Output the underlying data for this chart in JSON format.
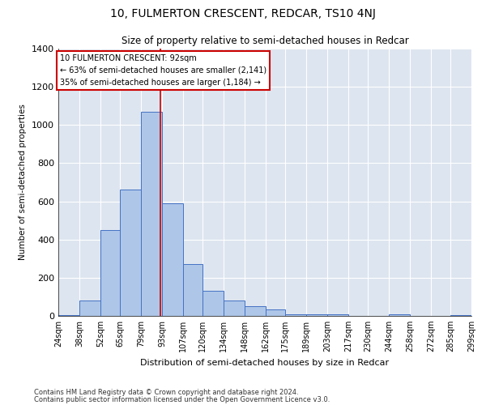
{
  "title": "10, FULMERTON CRESCENT, REDCAR, TS10 4NJ",
  "subtitle": "Size of property relative to semi-detached houses in Redcar",
  "xlabel": "Distribution of semi-detached houses by size in Redcar",
  "ylabel": "Number of semi-detached properties",
  "footnote1": "Contains HM Land Registry data © Crown copyright and database right 2024.",
  "footnote2": "Contains public sector information licensed under the Open Government Licence v3.0.",
  "annotation_line1": "10 FULMERTON CRESCENT: 92sqm",
  "annotation_line2": "← 63% of semi-detached houses are smaller (2,141)",
  "annotation_line3": "35% of semi-detached houses are larger (1,184) →",
  "property_size": 92,
  "bar_edges": [
    24,
    38,
    52,
    65,
    79,
    93,
    107,
    120,
    134,
    148,
    162,
    175,
    189,
    203,
    217,
    230,
    244,
    258,
    272,
    285,
    299
  ],
  "bar_heights": [
    5,
    80,
    450,
    660,
    1070,
    590,
    270,
    130,
    80,
    50,
    35,
    10,
    10,
    10,
    0,
    0,
    10,
    0,
    0,
    5
  ],
  "bar_color": "#aec6e8",
  "bar_edge_color": "#4472c4",
  "highlight_color": "#cc0000",
  "background_color": "#dde5f0",
  "grid_color": "#ffffff",
  "ylim": [
    0,
    1400
  ],
  "yticks": [
    0,
    200,
    400,
    600,
    800,
    1000,
    1200,
    1400
  ]
}
